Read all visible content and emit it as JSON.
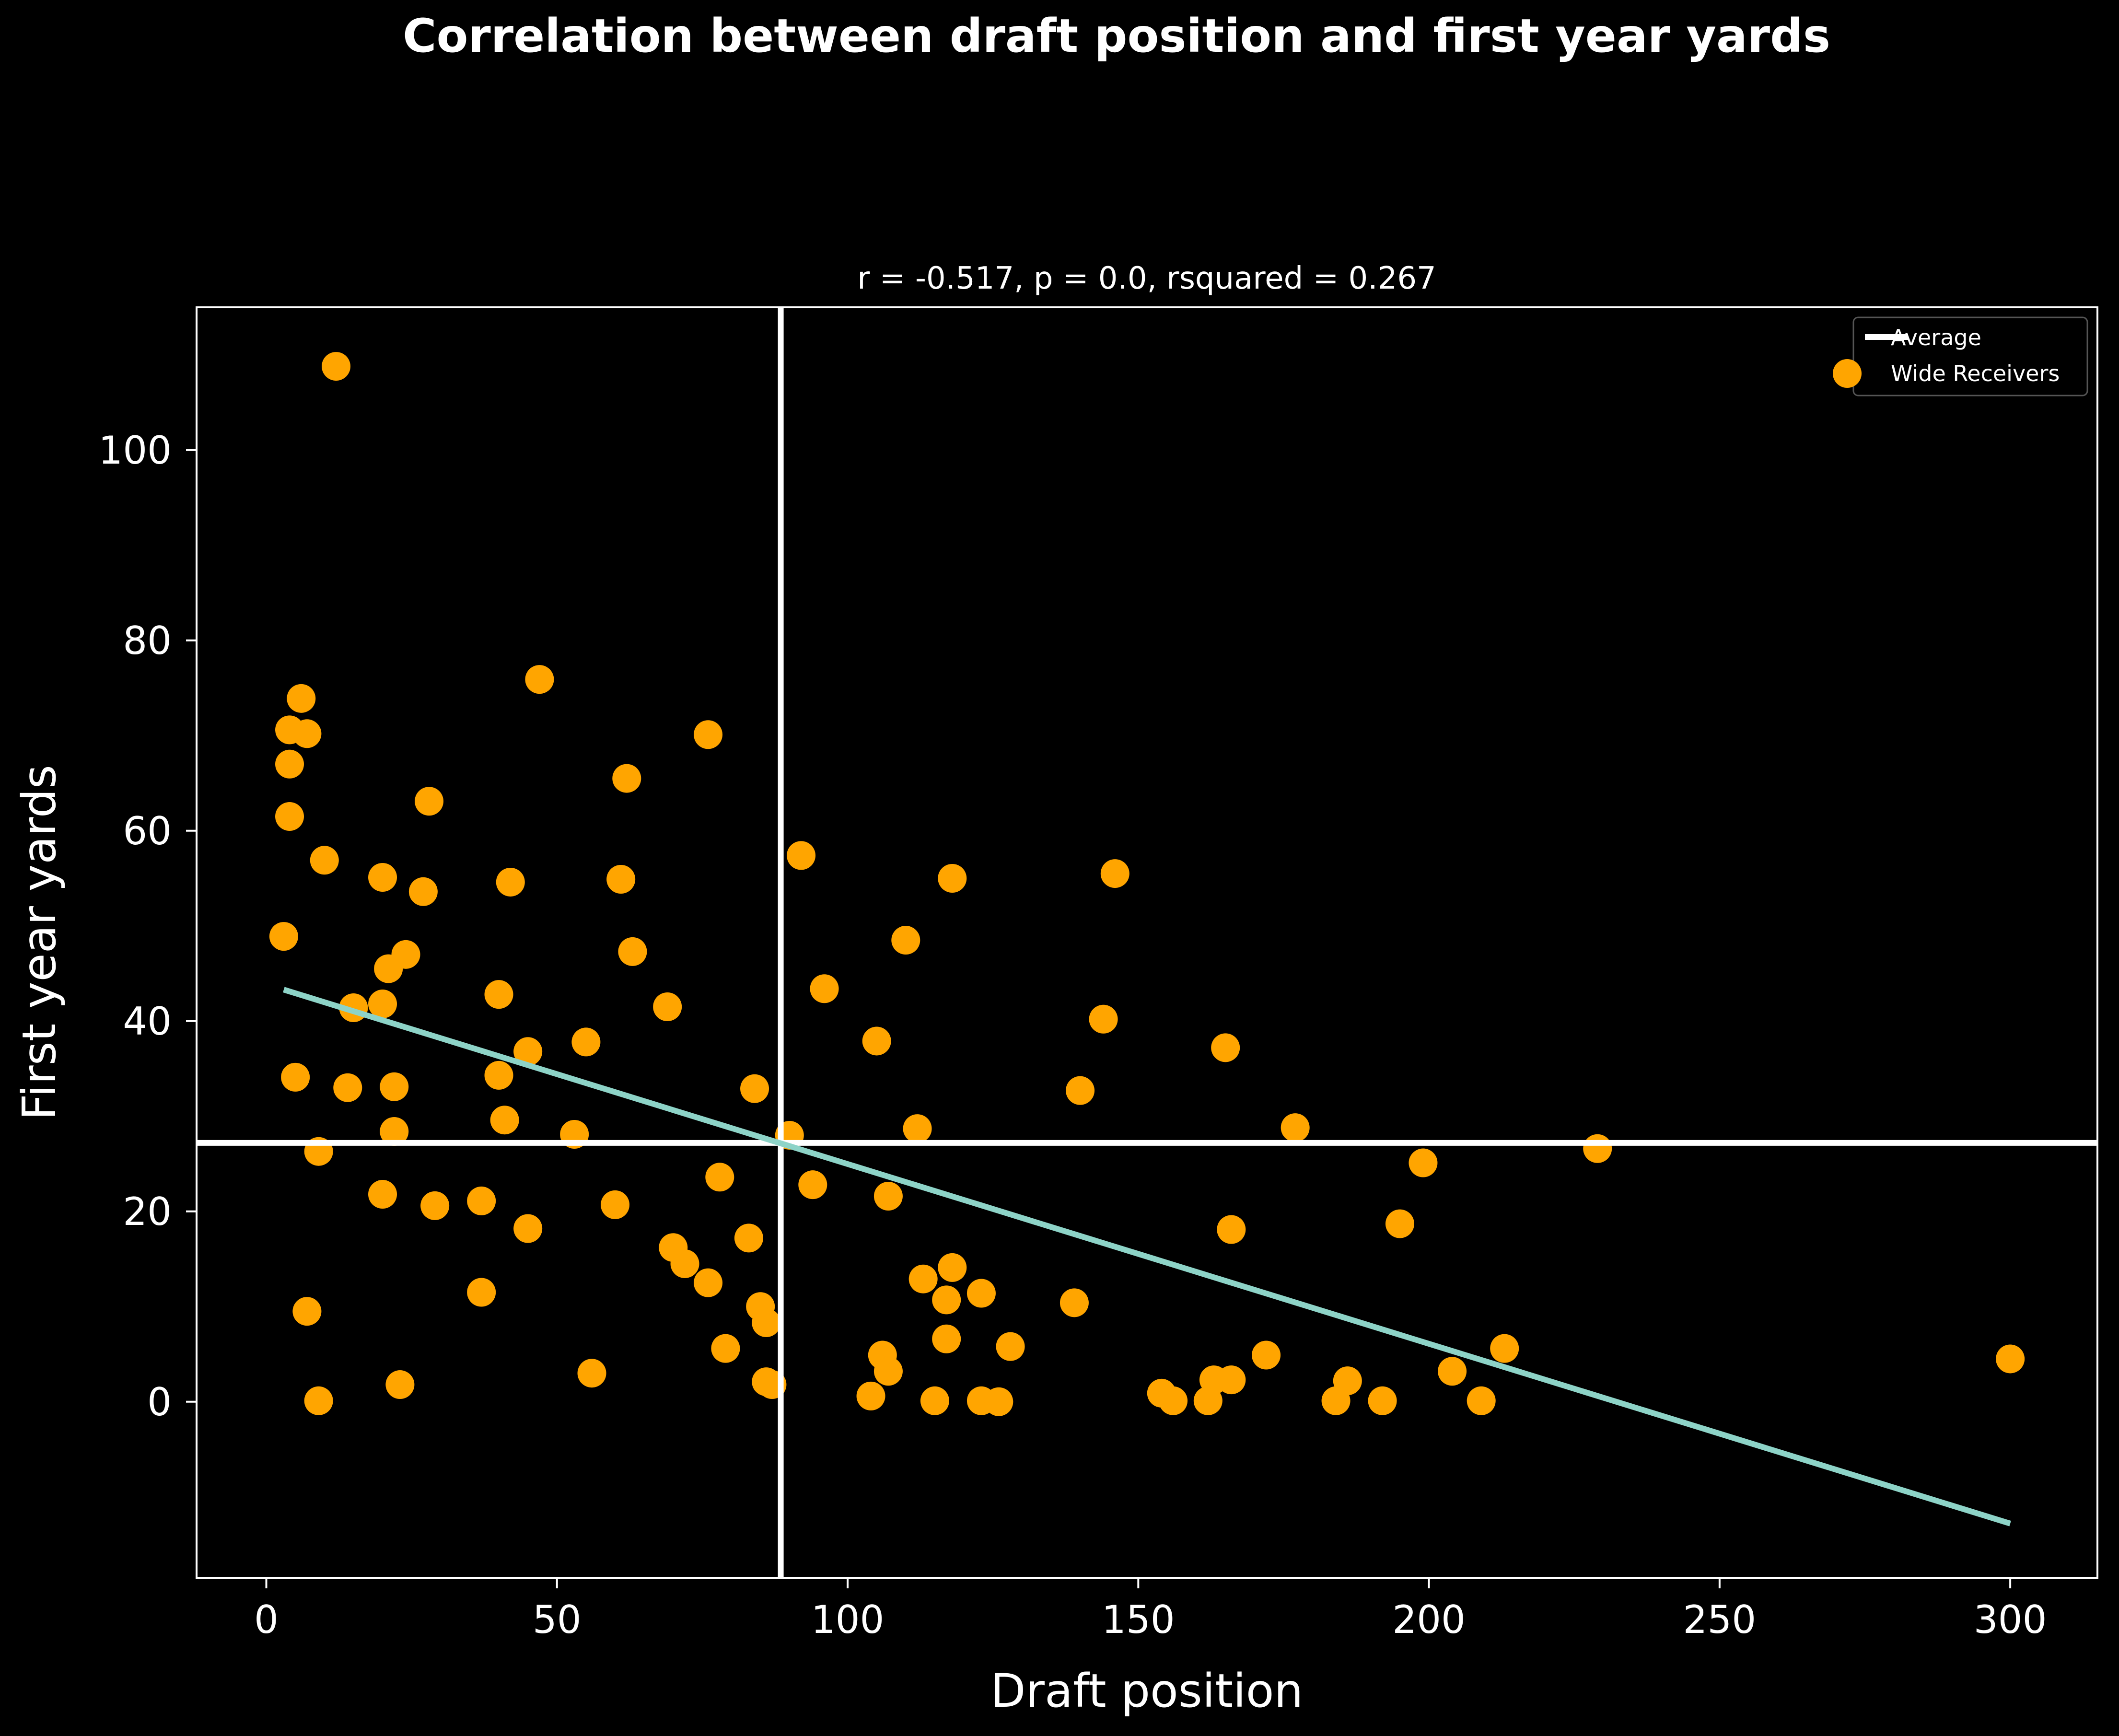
{
  "chart_data": {
    "type": "scatter",
    "title": "Correlation between draft position and first year yards",
    "subtitle": "r = -0.517, p = 0.0, rsquared = 0.267",
    "xlabel": "Draft position",
    "ylabel": "First year yards",
    "xlim": [
      -12,
      315
    ],
    "ylim": [
      -18.5,
      115
    ],
    "x_ticks": [
      0,
      50,
      100,
      150,
      200,
      250,
      300
    ],
    "y_ticks": [
      0,
      20,
      40,
      60,
      80,
      100
    ],
    "grid": false,
    "legend_position": "top-right",
    "colors": {
      "background": "#000000",
      "points": "#ffa500",
      "regression": "#8dd3c7",
      "average": "#ffffff",
      "frame": "#ffffff"
    },
    "average": {
      "label": "Average",
      "x": 88.5,
      "y": 27.2
    },
    "regression": {
      "x": [
        3,
        300
      ],
      "y": [
        43.3,
        -12.8
      ]
    },
    "series": [
      {
        "name": "Wide Receivers",
        "points": [
          [
            12,
            108.8
          ],
          [
            6,
            73.9
          ],
          [
            4,
            70.6
          ],
          [
            7,
            70.2
          ],
          [
            4,
            67
          ],
          [
            4,
            61.5
          ],
          [
            10,
            56.9
          ],
          [
            3,
            48.9
          ],
          [
            5,
            34.1
          ],
          [
            9,
            26.3
          ],
          [
            7,
            9.5
          ],
          [
            9,
            0.1
          ],
          [
            15,
            41.4
          ],
          [
            14,
            33
          ],
          [
            20,
            55.1
          ],
          [
            20,
            41.8
          ],
          [
            21,
            45.5
          ],
          [
            24,
            47
          ],
          [
            22,
            33.1
          ],
          [
            22,
            28.4
          ],
          [
            20,
            21.8
          ],
          [
            23,
            1.8
          ],
          [
            27,
            53.6
          ],
          [
            28,
            63.1
          ],
          [
            29,
            20.6
          ],
          [
            37,
            21.1
          ],
          [
            37,
            11.5
          ],
          [
            40,
            42.8
          ],
          [
            40,
            34.3
          ],
          [
            41,
            29.6
          ],
          [
            42,
            54.6
          ],
          [
            45,
            36.8
          ],
          [
            45,
            18.2
          ],
          [
            47,
            75.9
          ],
          [
            53,
            28.1
          ],
          [
            55,
            37.8
          ],
          [
            56,
            3
          ],
          [
            60,
            20.7
          ],
          [
            61,
            54.9
          ],
          [
            62,
            65.5
          ],
          [
            63,
            47.3
          ],
          [
            69,
            41.5
          ],
          [
            70,
            16.2
          ],
          [
            72,
            14.5
          ],
          [
            76,
            70.1
          ],
          [
            76,
            12.5
          ],
          [
            78,
            23.6
          ],
          [
            79,
            5.6
          ],
          [
            83,
            17.2
          ],
          [
            84,
            32.9
          ],
          [
            85,
            10
          ],
          [
            86,
            8.3
          ],
          [
            86,
            2.1
          ],
          [
            87,
            1.8
          ],
          [
            90,
            28
          ],
          [
            92,
            57.4
          ],
          [
            94,
            22.8
          ],
          [
            96,
            43.4
          ],
          [
            104,
            0.6
          ],
          [
            105,
            37.9
          ],
          [
            106,
            4.9
          ],
          [
            107,
            3.2
          ],
          [
            107,
            21.6
          ],
          [
            110,
            48.5
          ],
          [
            112,
            28.7
          ],
          [
            113,
            12.9
          ],
          [
            115,
            0.1
          ],
          [
            117,
            10.7
          ],
          [
            117,
            6.6
          ],
          [
            118,
            55
          ],
          [
            118,
            14.1
          ],
          [
            123,
            11.4
          ],
          [
            123,
            0.1
          ],
          [
            126,
            0
          ],
          [
            128,
            5.8
          ],
          [
            139,
            10.4
          ],
          [
            140,
            32.7
          ],
          [
            144,
            40.2
          ],
          [
            146,
            55.5
          ],
          [
            154,
            0.9
          ],
          [
            156,
            0.1
          ],
          [
            162,
            0.1
          ],
          [
            163,
            2.3
          ],
          [
            165,
            37.2
          ],
          [
            166,
            18.1
          ],
          [
            166,
            2.3
          ],
          [
            172,
            4.9
          ],
          [
            177,
            28.8
          ],
          [
            184,
            0.1
          ],
          [
            186,
            2.2
          ],
          [
            192,
            0.1
          ],
          [
            195,
            18.7
          ],
          [
            199,
            25.1
          ],
          [
            204,
            3.2
          ],
          [
            209,
            0.1
          ],
          [
            213,
            5.6
          ],
          [
            229,
            26.6
          ],
          [
            300,
            4.5
          ]
        ]
      }
    ]
  }
}
